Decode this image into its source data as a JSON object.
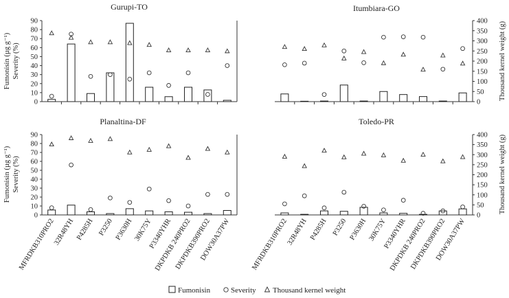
{
  "legend": {
    "fumonisin": "Fumonisin",
    "severity": "Severity",
    "tkw": "Thousand kernel weight"
  },
  "axis_labels": {
    "left_line1": "Fumonisin (µg g⁻¹)",
    "left_line2": "Severity (%)",
    "right": "Thousand kernel weight (g)"
  },
  "categories": [
    "MFRDKB310PRO2",
    "32R48YH",
    "P4285H",
    "P3250",
    "P3630H",
    "30K75Y",
    "P3340YHR",
    "DKPDKB 240PRO2",
    "DKPDKB390PRO2",
    "DOW30A37PW"
  ],
  "chart_data": [
    {
      "type": "bar+scatter",
      "title": "Gurupi-TO",
      "categories": [
        "MFRDKB310PRO2",
        "32R48YH",
        "P4285H",
        "P3250",
        "P3630H",
        "30K75Y",
        "P3340YHR",
        "DKPDKB 240PRO2",
        "DKPDKB390PRO2",
        "DOW30A37PW"
      ],
      "left_ylim": [
        0,
        90
      ],
      "left_ticks": [
        0,
        10,
        20,
        30,
        40,
        50,
        60,
        70,
        80,
        90
      ],
      "series": [
        {
          "name": "Fumonisin",
          "axis": "left",
          "values": [
            2.5,
            64,
            9,
            32,
            87,
            16,
            5.5,
            16,
            13,
            1.5
          ]
        },
        {
          "name": "Severity",
          "axis": "left",
          "values": [
            6,
            75,
            28,
            30,
            25,
            32,
            18,
            32,
            8,
            40
          ]
        },
        {
          "name": "Thousand kernel weight",
          "axis": "left",
          "values": [
            76,
            71,
            66,
            66,
            65,
            63,
            57,
            57,
            57,
            56
          ]
        }
      ]
    },
    {
      "type": "bar+scatter",
      "title": "Itumbiara-GO",
      "categories": [
        "MFRDKB310PRO2",
        "32R48YH",
        "P4285H",
        "P3250",
        "P3630H",
        "30K75Y",
        "P3340YHR",
        "DKPDKB 240PRO2",
        "DKPDKB390PRO2",
        "DOW30A37PW"
      ],
      "right_ylim": [
        0,
        400
      ],
      "right_ticks": [
        0,
        50,
        100,
        150,
        200,
        250,
        300,
        350,
        400
      ],
      "series": [
        {
          "name": "Fumonisin",
          "axis": "right",
          "values": [
            38,
            2,
            3,
            82,
            3,
            50,
            35,
            25,
            3,
            43
          ]
        },
        {
          "name": "Severity",
          "axis": "right",
          "values": [
            182,
            190,
            35,
            250,
            192,
            318,
            320,
            318,
            160,
            262
          ]
        },
        {
          "name": "Thousand kernel weight",
          "axis": "right",
          "values": [
            270,
            260,
            278,
            213,
            245,
            190,
            232,
            158,
            228,
            188
          ]
        }
      ]
    },
    {
      "type": "bar+scatter",
      "title": "Planaltina-DF",
      "categories": [
        "MFRDKB310PRO2",
        "32R48YH",
        "P4285H",
        "P3250",
        "P3630H",
        "30K75Y",
        "P3340YHR",
        "DKPDKB 240PRO2",
        "DKPDKB390PRO2",
        "DOW30A37PW"
      ],
      "left_ylim": [
        0,
        90
      ],
      "left_ticks": [
        0,
        10,
        20,
        30,
        40,
        50,
        60,
        70,
        80,
        90
      ],
      "series": [
        {
          "name": "Fumonisin",
          "axis": "left",
          "values": [
            5.5,
            11,
            3.5,
            1.5,
            7,
            4.5,
            3.5,
            3,
            1.5,
            5
          ]
        },
        {
          "name": "Severity",
          "axis": "left",
          "values": [
            8,
            56,
            6,
            19,
            14,
            29,
            16,
            10,
            23,
            23
          ]
        },
        {
          "name": "Thousand kernel weight",
          "axis": "left",
          "values": [
            79,
            86,
            83,
            85,
            70,
            73,
            77,
            64,
            74,
            70
          ]
        }
      ]
    },
    {
      "type": "bar+scatter",
      "title": "Toledo-PR",
      "categories": [
        "MFRDKB310PRO2",
        "32R48YH",
        "P4285H",
        "P3250",
        "P3630H",
        "30K75Y",
        "P3340YHR",
        "DKPDKB 240PRO2",
        "DKPDKB390PRO2",
        "DOW30A37PW"
      ],
      "right_ylim": [
        0,
        400
      ],
      "right_ticks": [
        0,
        50,
        100,
        150,
        200,
        250,
        300,
        350,
        400
      ],
      "series": [
        {
          "name": "Fumonisin",
          "axis": "right",
          "values": [
            10,
            3,
            20,
            18,
            38,
            10,
            8,
            3,
            20,
            30
          ]
        },
        {
          "name": "Severity",
          "axis": "right",
          "values": [
            55,
            95,
            35,
            113,
            43,
            25,
            73,
            8,
            20,
            40
          ]
        },
        {
          "name": "Thousand kernel weight",
          "axis": "right",
          "values": [
            290,
            243,
            320,
            287,
            305,
            297,
            270,
            300,
            267,
            288
          ]
        }
      ]
    }
  ]
}
